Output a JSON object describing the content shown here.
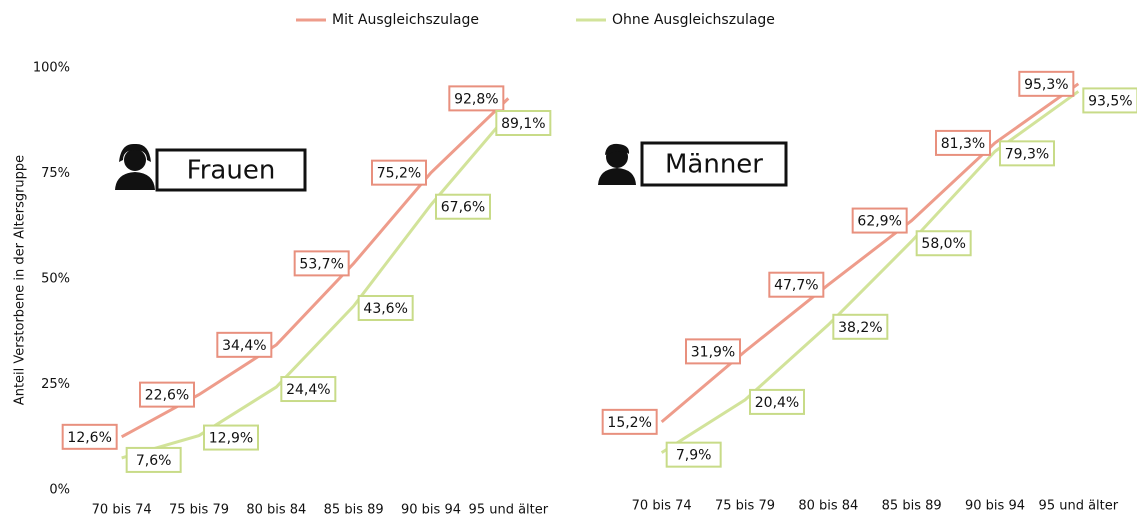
{
  "chart_data": [
    {
      "type": "line",
      "title": "Frauen",
      "y_label": "Anteil Verstorbene in der Altersgruppe",
      "categories": [
        "70 bis 74",
        "75 bis 79",
        "80 bis 84",
        "85 bis 89",
        "90 bis 94",
        "95 und älter"
      ],
      "ylim": [
        0,
        100
      ],
      "yticks": [
        {
          "value": 0,
          "label": "0%"
        },
        {
          "value": 25,
          "label": "25%"
        },
        {
          "value": 50,
          "label": "50%"
        },
        {
          "value": 75,
          "label": "75%"
        },
        {
          "value": 100,
          "label": "100%"
        }
      ],
      "series": [
        {
          "name": "Mit Ausgleichszulage",
          "color": "#ee9c8b",
          "values": [
            12.6,
            22.6,
            34.4,
            53.7,
            75.2,
            92.8
          ],
          "value_labels": [
            "12,6%",
            "22,6%",
            "34,4%",
            "53,7%",
            "75,2%",
            "92,8%"
          ]
        },
        {
          "name": "Ohne Ausgleichszulage",
          "color": "#d2e39a",
          "values": [
            7.6,
            12.9,
            24.4,
            43.6,
            67.6,
            89.1
          ],
          "value_labels": [
            "7,6%",
            "12,9%",
            "24,4%",
            "43,6%",
            "67,6%",
            "89,1%"
          ]
        }
      ]
    },
    {
      "type": "line",
      "title": "Männer",
      "categories": [
        "70 bis 74",
        "75 bis 79",
        "80 bis 84",
        "85 bis 89",
        "90 bis 94",
        "95 und älter"
      ],
      "ylim": [
        0,
        100
      ],
      "series": [
        {
          "color": "#ee9c8b",
          "values": [
            15.2,
            31.9,
            47.7,
            62.9,
            81.3,
            95.3
          ],
          "value_labels": [
            "15,2%",
            "31,9%",
            "47,7%",
            "62,9%",
            "81,3%",
            "95,3%"
          ]
        },
        {
          "color": "#d2e39a",
          "values": [
            7.9,
            20.4,
            38.2,
            58.0,
            79.3,
            93.5
          ],
          "value_labels": [
            "7,9%",
            "20,4%",
            "38,2%",
            "58,0%",
            "79,3%",
            "93,5%"
          ]
        }
      ]
    }
  ]
}
